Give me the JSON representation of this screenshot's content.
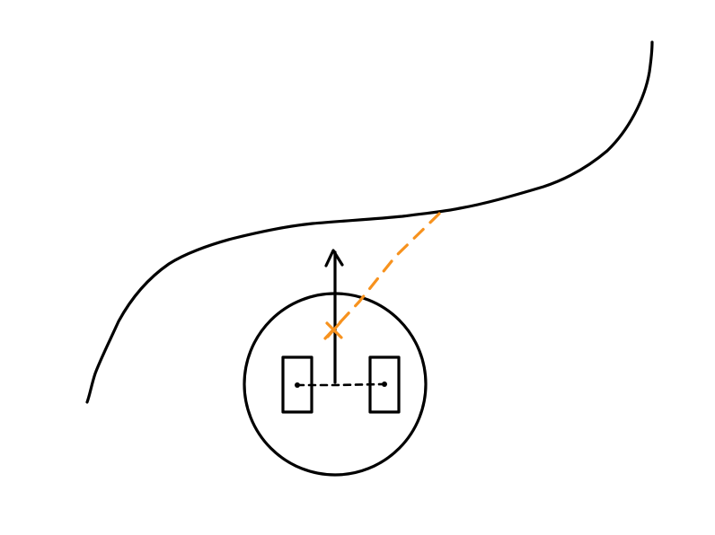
{
  "diagram": {
    "description_free": true,
    "colors": {
      "ink": "#000000",
      "accent": "#F7921E",
      "background": "#ffffff"
    },
    "elements": [
      {
        "name": "path-curve",
        "kind": "freehand-curve",
        "color": "ink"
      },
      {
        "name": "robot-body-circle",
        "kind": "circle",
        "color": "ink"
      },
      {
        "name": "left-wheel",
        "kind": "rectangle",
        "color": "ink"
      },
      {
        "name": "right-wheel",
        "kind": "rectangle",
        "color": "ink"
      },
      {
        "name": "axle-dashed-line",
        "kind": "dashed-line",
        "color": "ink"
      },
      {
        "name": "heading-arrow",
        "kind": "arrow",
        "color": "ink"
      },
      {
        "name": "lookahead-dashed-line",
        "kind": "dashed-line",
        "color": "accent"
      },
      {
        "name": "lookahead-point-marker",
        "kind": "x-mark",
        "color": "accent"
      }
    ]
  }
}
